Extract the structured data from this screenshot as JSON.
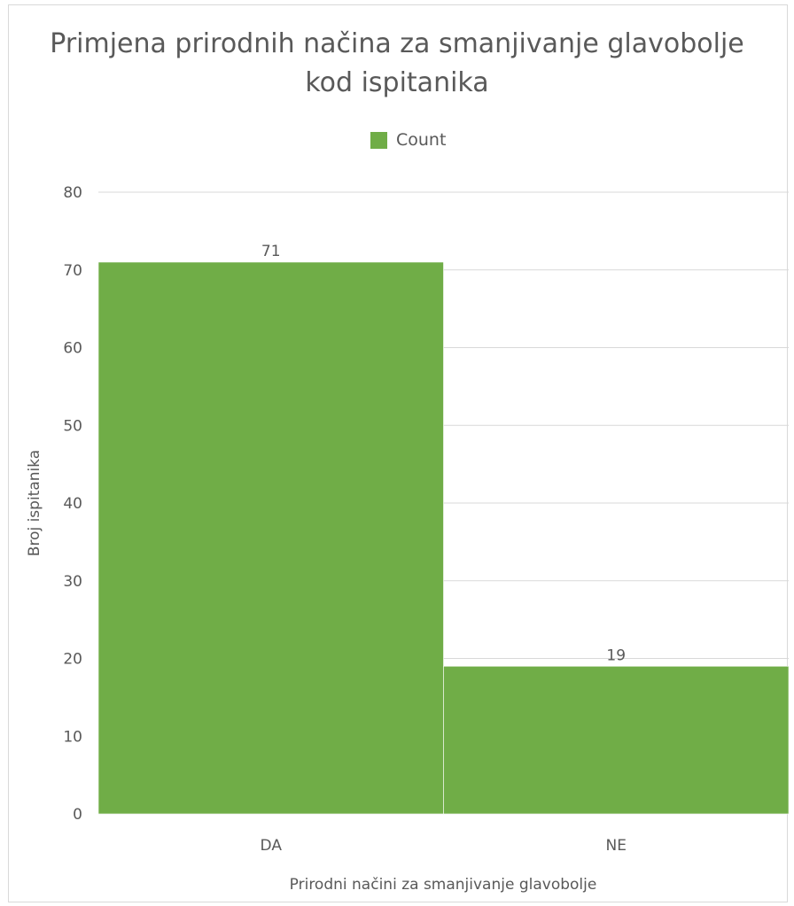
{
  "chart_data": {
    "type": "bar",
    "title": "Primjena prirodnih načina za smanjivanje glavobolje kod ispitanika",
    "title_lines": [
      "Primjena prirodnih načina za smanjivanje glavobolje",
      "kod ispitanika"
    ],
    "categories": [
      "DA",
      "NE"
    ],
    "series": [
      {
        "name": "Count",
        "values": [
          71,
          19
        ],
        "color": "#70ad47"
      }
    ],
    "xlabel": "Prirodni načini za smanjivanje glavobolje",
    "ylabel": "Broj ispitanika",
    "ylim": [
      0,
      80
    ],
    "yticks": [
      0,
      10,
      20,
      30,
      40,
      50,
      60,
      70,
      80
    ],
    "ytick_labels": [
      "0",
      "10",
      "20",
      "30",
      "40",
      "50",
      "60",
      "70",
      "80"
    ],
    "data_labels": [
      "71",
      "19"
    ],
    "grid": true,
    "legend": "top-center",
    "gridline_color": "#d9d9d9",
    "text_color": "#595959"
  }
}
